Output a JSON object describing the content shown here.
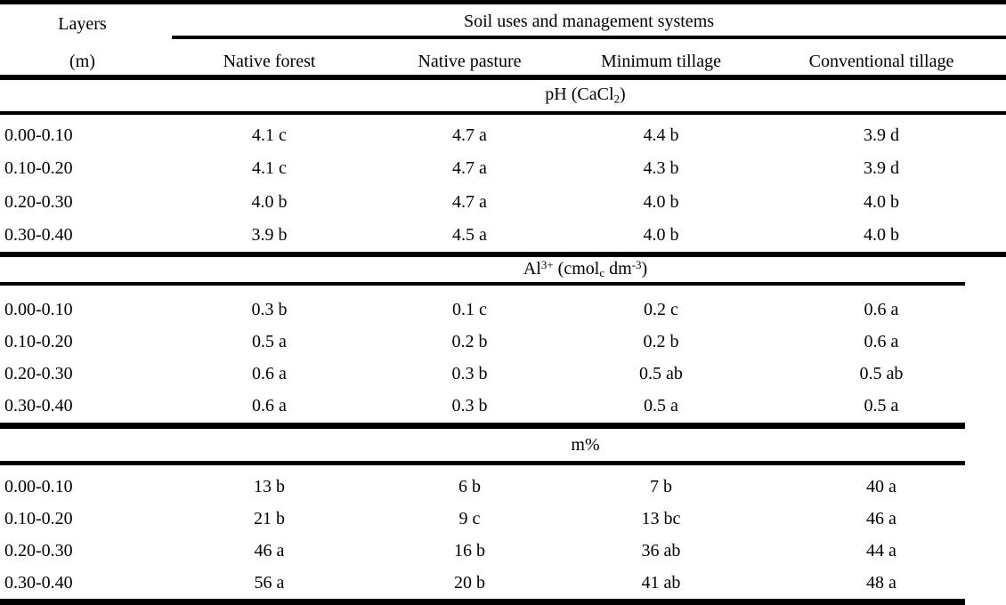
{
  "colors": {
    "text": "#000000",
    "background": "#ffffff",
    "rule": "#000000"
  },
  "table": {
    "header": {
      "col1_line1": "Layers",
      "col1_line2": "(m)",
      "group_title": "Soil uses and management systems",
      "columns": [
        "Native forest",
        "Native pasture",
        "Minimum tillage",
        "Conventional tillage"
      ]
    },
    "sections": [
      {
        "id": "ph",
        "title_plain": "pH (CaCl2)",
        "title_parts": [
          {
            "text": "pH (CaCl"
          },
          {
            "text": "2",
            "script": "sub"
          },
          {
            "text": ")"
          }
        ],
        "rows": [
          {
            "layer": "0.00-0.10",
            "values": [
              "4.1 c",
              "4.7 a",
              "4.4 b",
              "3.9 d"
            ]
          },
          {
            "layer": "0.10-0.20",
            "values": [
              "4.1 c",
              "4.7 a",
              "4.3 b",
              "3.9 d"
            ]
          },
          {
            "layer": "0.20-0.30",
            "values": [
              "4.0 b",
              "4.7 a",
              "4.0 b",
              "4.0 b"
            ]
          },
          {
            "layer": "0.30-0.40",
            "values": [
              "3.9 b",
              "4.5 a",
              "4.0 b",
              "4.0 b"
            ]
          }
        ]
      },
      {
        "id": "al",
        "title_plain": "Al3+ (cmolc dm-3)",
        "title_parts": [
          {
            "text": "Al"
          },
          {
            "text": "3+",
            "script": "sup"
          },
          {
            "text": " (cmol"
          },
          {
            "text": "c",
            "script": "sub"
          },
          {
            "text": " dm"
          },
          {
            "text": "-3",
            "script": "sup"
          },
          {
            "text": ")"
          }
        ],
        "rows": [
          {
            "layer": "0.00-0.10",
            "values": [
              "0.3 b",
              "0.1 c",
              "0.2 c",
              "0.6 a"
            ]
          },
          {
            "layer": "0.10-0.20",
            "values": [
              "0.5 a",
              "0.2 b",
              "0.2 b",
              "0.6 a"
            ]
          },
          {
            "layer": "0.20-0.30",
            "values": [
              "0.6 a",
              "0.3 b",
              "0.5 ab",
              "0.5 ab"
            ]
          },
          {
            "layer": "0.30-0.40",
            "values": [
              "0.6 a",
              "0.3 b",
              "0.5 a",
              "0.5 a"
            ]
          }
        ]
      },
      {
        "id": "m",
        "title_plain": "m%",
        "title_parts": [
          {
            "text": "m%"
          }
        ],
        "rows": [
          {
            "layer": "0.00-0.10",
            "values": [
              "13 b",
              "6 b",
              "7 b",
              "40 a"
            ]
          },
          {
            "layer": "0.10-0.20",
            "values": [
              "21 b",
              "9 c",
              "13 bc",
              "46 a"
            ]
          },
          {
            "layer": "0.20-0.30",
            "values": [
              "46 a",
              "16 b",
              "36 ab",
              "44 a"
            ]
          },
          {
            "layer": "0.30-0.40",
            "values": [
              "56 a",
              "20 b",
              "41 ab",
              "48 a"
            ]
          }
        ]
      }
    ]
  }
}
